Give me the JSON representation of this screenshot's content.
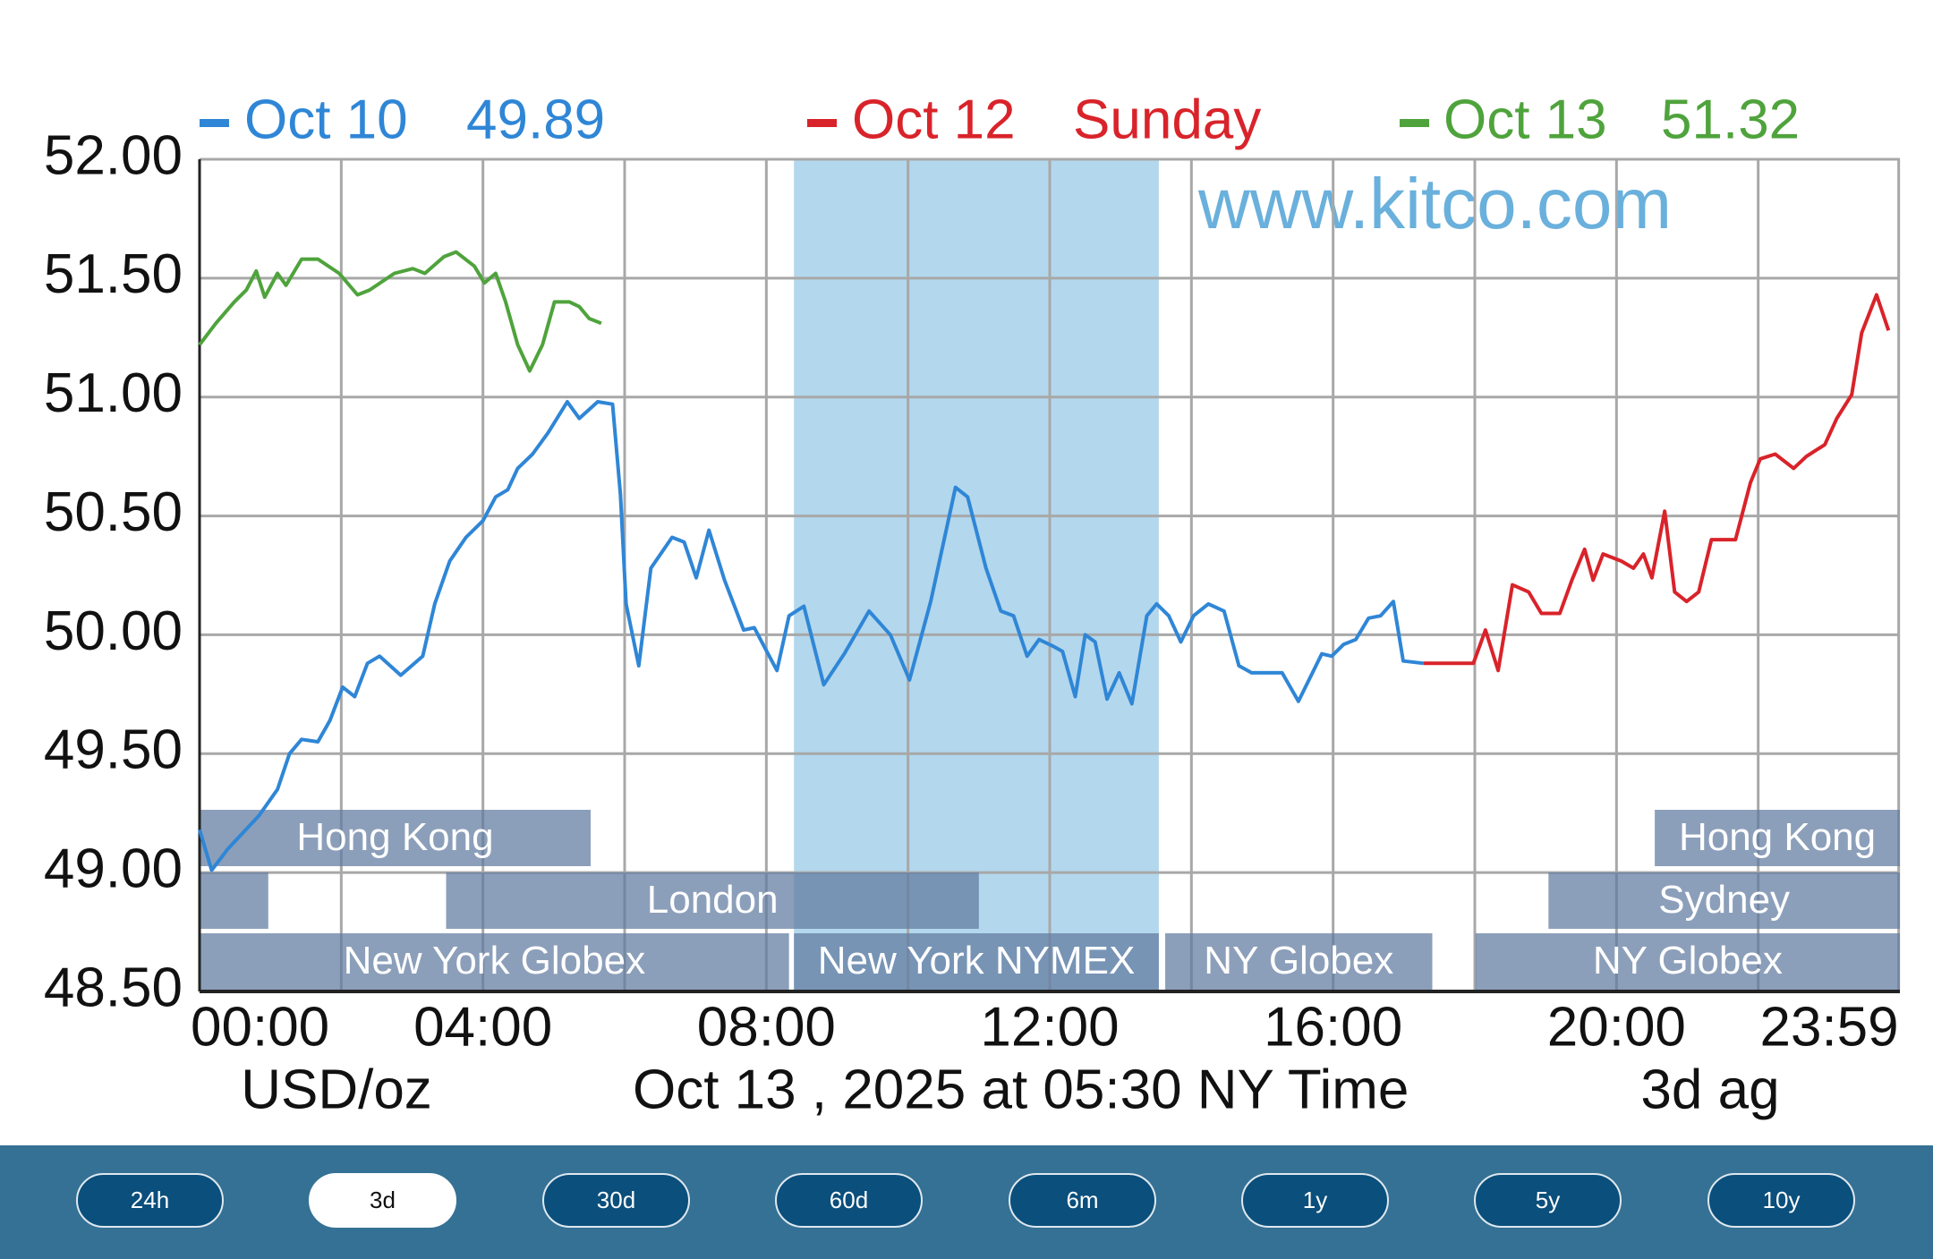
{
  "chart_data": {
    "type": "line",
    "watermark": "www.kitco.com",
    "unit_label": "USD/oz",
    "subtitle": "Oct 13 , 2025 at 05:30 NY Time",
    "note": "3d ag",
    "xlim": [
      0,
      24
    ],
    "xticks": [
      {
        "value": 0,
        "label": "00:00"
      },
      {
        "value": 4,
        "label": "04:00"
      },
      {
        "value": 8,
        "label": "08:00"
      },
      {
        "value": 12,
        "label": "12:00"
      },
      {
        "value": 16,
        "label": "16:00"
      },
      {
        "value": 20,
        "label": "20:00"
      },
      {
        "value": 23.983,
        "label": "23:59"
      }
    ],
    "x_minor_grid": [
      2,
      6,
      10,
      14,
      18,
      22
    ],
    "ylim": [
      48.5,
      52
    ],
    "yticks": [
      {
        "value": 48.5,
        "label": "48.50"
      },
      {
        "value": 49,
        "label": "49.00"
      },
      {
        "value": 49.5,
        "label": "49.50"
      },
      {
        "value": 50,
        "label": "50.00"
      },
      {
        "value": 50.5,
        "label": "50.50"
      },
      {
        "value": 51,
        "label": "51.00"
      },
      {
        "value": 51.5,
        "label": "51.50"
      },
      {
        "value": 52,
        "label": "52.00"
      }
    ],
    "grid": true,
    "series": [
      {
        "name": "Oct 10",
        "legend_value": 49.89,
        "color": "#2f86d6",
        "x": [
          0,
          0.17,
          0.4,
          0.84,
          1.1,
          1.27,
          1.44,
          1.67,
          1.84,
          2.02,
          2.19,
          2.37,
          2.54,
          2.84,
          3.15,
          3.32,
          3.53,
          3.76,
          4.0,
          4.18,
          4.35,
          4.49,
          4.7,
          4.92,
          5.19,
          5.36,
          5.62,
          5.83,
          5.94,
          6.02,
          6.2,
          6.37,
          6.67,
          6.84,
          7.01,
          7.19,
          7.41,
          7.68,
          7.83,
          7.97,
          8.15,
          8.32,
          8.53,
          8.81,
          9.1,
          9.45,
          9.75,
          10.02,
          10.32,
          10.67,
          10.84,
          11.1,
          11.31,
          11.49,
          11.68,
          11.85,
          12.06,
          12.18,
          12.36,
          12.5,
          12.64,
          12.81,
          12.98,
          13.16,
          13.37,
          13.51,
          13.68,
          13.85,
          14.03,
          14.24,
          14.46,
          14.67,
          14.85,
          15.28,
          15.51,
          15.84,
          15.98,
          16.15,
          16.32,
          16.5,
          16.67,
          16.85,
          16.99,
          17.28
        ],
        "values": [
          49.18,
          49.01,
          49.1,
          49.24,
          49.35,
          49.5,
          49.56,
          49.55,
          49.64,
          49.78,
          49.74,
          49.88,
          49.91,
          49.83,
          49.91,
          50.13,
          50.31,
          50.41,
          50.48,
          50.58,
          50.61,
          50.7,
          50.76,
          50.85,
          50.98,
          50.91,
          50.98,
          50.97,
          50.59,
          50.13,
          49.87,
          50.28,
          50.41,
          50.39,
          50.24,
          50.44,
          50.23,
          50.02,
          50.03,
          49.95,
          49.85,
          50.08,
          50.12,
          49.79,
          49.92,
          50.1,
          50.0,
          49.81,
          50.14,
          50.62,
          50.58,
          50.28,
          50.1,
          50.08,
          49.91,
          49.98,
          49.95,
          49.93,
          49.74,
          50.0,
          49.97,
          49.73,
          49.84,
          49.71,
          50.08,
          50.13,
          50.08,
          49.97,
          50.08,
          50.13,
          50.1,
          49.87,
          49.84,
          49.84,
          49.72,
          49.92,
          49.91,
          49.96,
          49.98,
          50.07,
          50.08,
          50.14,
          49.89,
          49.88
        ]
      },
      {
        "name": "Oct 12",
        "legend_value": "Sunday",
        "color": "#d9232a",
        "x": [
          17.28,
          17.98,
          18.15,
          18.33,
          18.53,
          18.76,
          18.94,
          19.2,
          19.37,
          19.55,
          19.67,
          19.81,
          20.07,
          20.24,
          20.38,
          20.5,
          20.68,
          20.82,
          20.99,
          21.16,
          21.34,
          21.68,
          21.89,
          22.03,
          22.24,
          22.5,
          22.68,
          22.94,
          23.11,
          23.32,
          23.46,
          23.67,
          23.84
        ],
        "values": [
          49.88,
          49.88,
          50.02,
          49.85,
          50.21,
          50.18,
          50.09,
          50.09,
          50.23,
          50.36,
          50.23,
          50.34,
          50.31,
          50.28,
          50.34,
          50.24,
          50.52,
          50.18,
          50.14,
          50.18,
          50.4,
          50.4,
          50.64,
          50.74,
          50.76,
          50.7,
          50.75,
          50.8,
          50.91,
          51.01,
          51.27,
          51.43,
          51.28
        ]
      },
      {
        "name": "Oct 13",
        "legend_value": 51.32,
        "color": "#4fa33c",
        "x": [
          0,
          0.23,
          0.49,
          0.66,
          0.8,
          0.92,
          1.1,
          1.22,
          1.44,
          1.67,
          1.97,
          2.23,
          2.4,
          2.75,
          3.01,
          3.18,
          3.45,
          3.62,
          3.88,
          4.02,
          4.18,
          4.32,
          4.49,
          4.66,
          4.84,
          5.01,
          5.22,
          5.36,
          5.5,
          5.67
        ],
        "values": [
          51.22,
          51.31,
          51.4,
          51.45,
          51.53,
          51.42,
          51.52,
          51.47,
          51.58,
          51.58,
          51.52,
          51.43,
          51.45,
          51.52,
          51.54,
          51.52,
          51.59,
          51.61,
          51.55,
          51.48,
          51.52,
          51.4,
          51.22,
          51.11,
          51.22,
          51.4,
          51.4,
          51.38,
          51.33,
          51.31
        ]
      }
    ],
    "sessions": [
      {
        "label": "Hong Kong",
        "start": 0,
        "end": 5.52
      },
      {
        "label": "Hong Kong",
        "start": 20.54,
        "end": 24
      },
      {
        "label": null,
        "start": 0,
        "end": 0.97
      },
      {
        "label": "London",
        "start": 3.48,
        "end": 11.0
      },
      {
        "label": "Sydney",
        "start": 19.04,
        "end": 24
      },
      {
        "label": "New York Globex",
        "start": 0,
        "end": 8.32
      },
      {
        "label": "New York NYMEX",
        "start": 8.39,
        "end": 13.54
      },
      {
        "label": "NY Globex",
        "start": 13.63,
        "end": 17.4
      },
      {
        "label": "NY Globex",
        "start": 18.01,
        "end": 24
      }
    ]
  },
  "range_buttons": {
    "options": [
      "24h",
      "3d",
      "30d",
      "60d",
      "6m",
      "1y",
      "5y",
      "10y"
    ],
    "selected": 1
  }
}
